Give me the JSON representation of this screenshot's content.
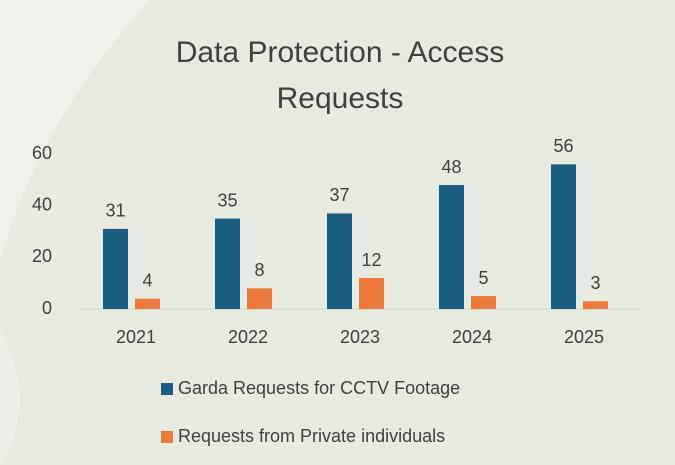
{
  "chart_data": {
    "type": "bar",
    "title": "Data Protection - Access Requests",
    "categories": [
      "2021",
      "2022",
      "2023",
      "2024",
      "2025"
    ],
    "series": [
      {
        "name": "Garda Requests for CCTV Footage",
        "color": "#1b5e84",
        "values": [
          31,
          35,
          37,
          48,
          56
        ]
      },
      {
        "name": "Requests from Private individuals",
        "color": "#ee7a3a",
        "values": [
          4,
          8,
          12,
          5,
          3
        ]
      }
    ],
    "ylim": [
      0,
      60
    ],
    "yticks": [
      0,
      20,
      40,
      60
    ],
    "grid": false
  }
}
